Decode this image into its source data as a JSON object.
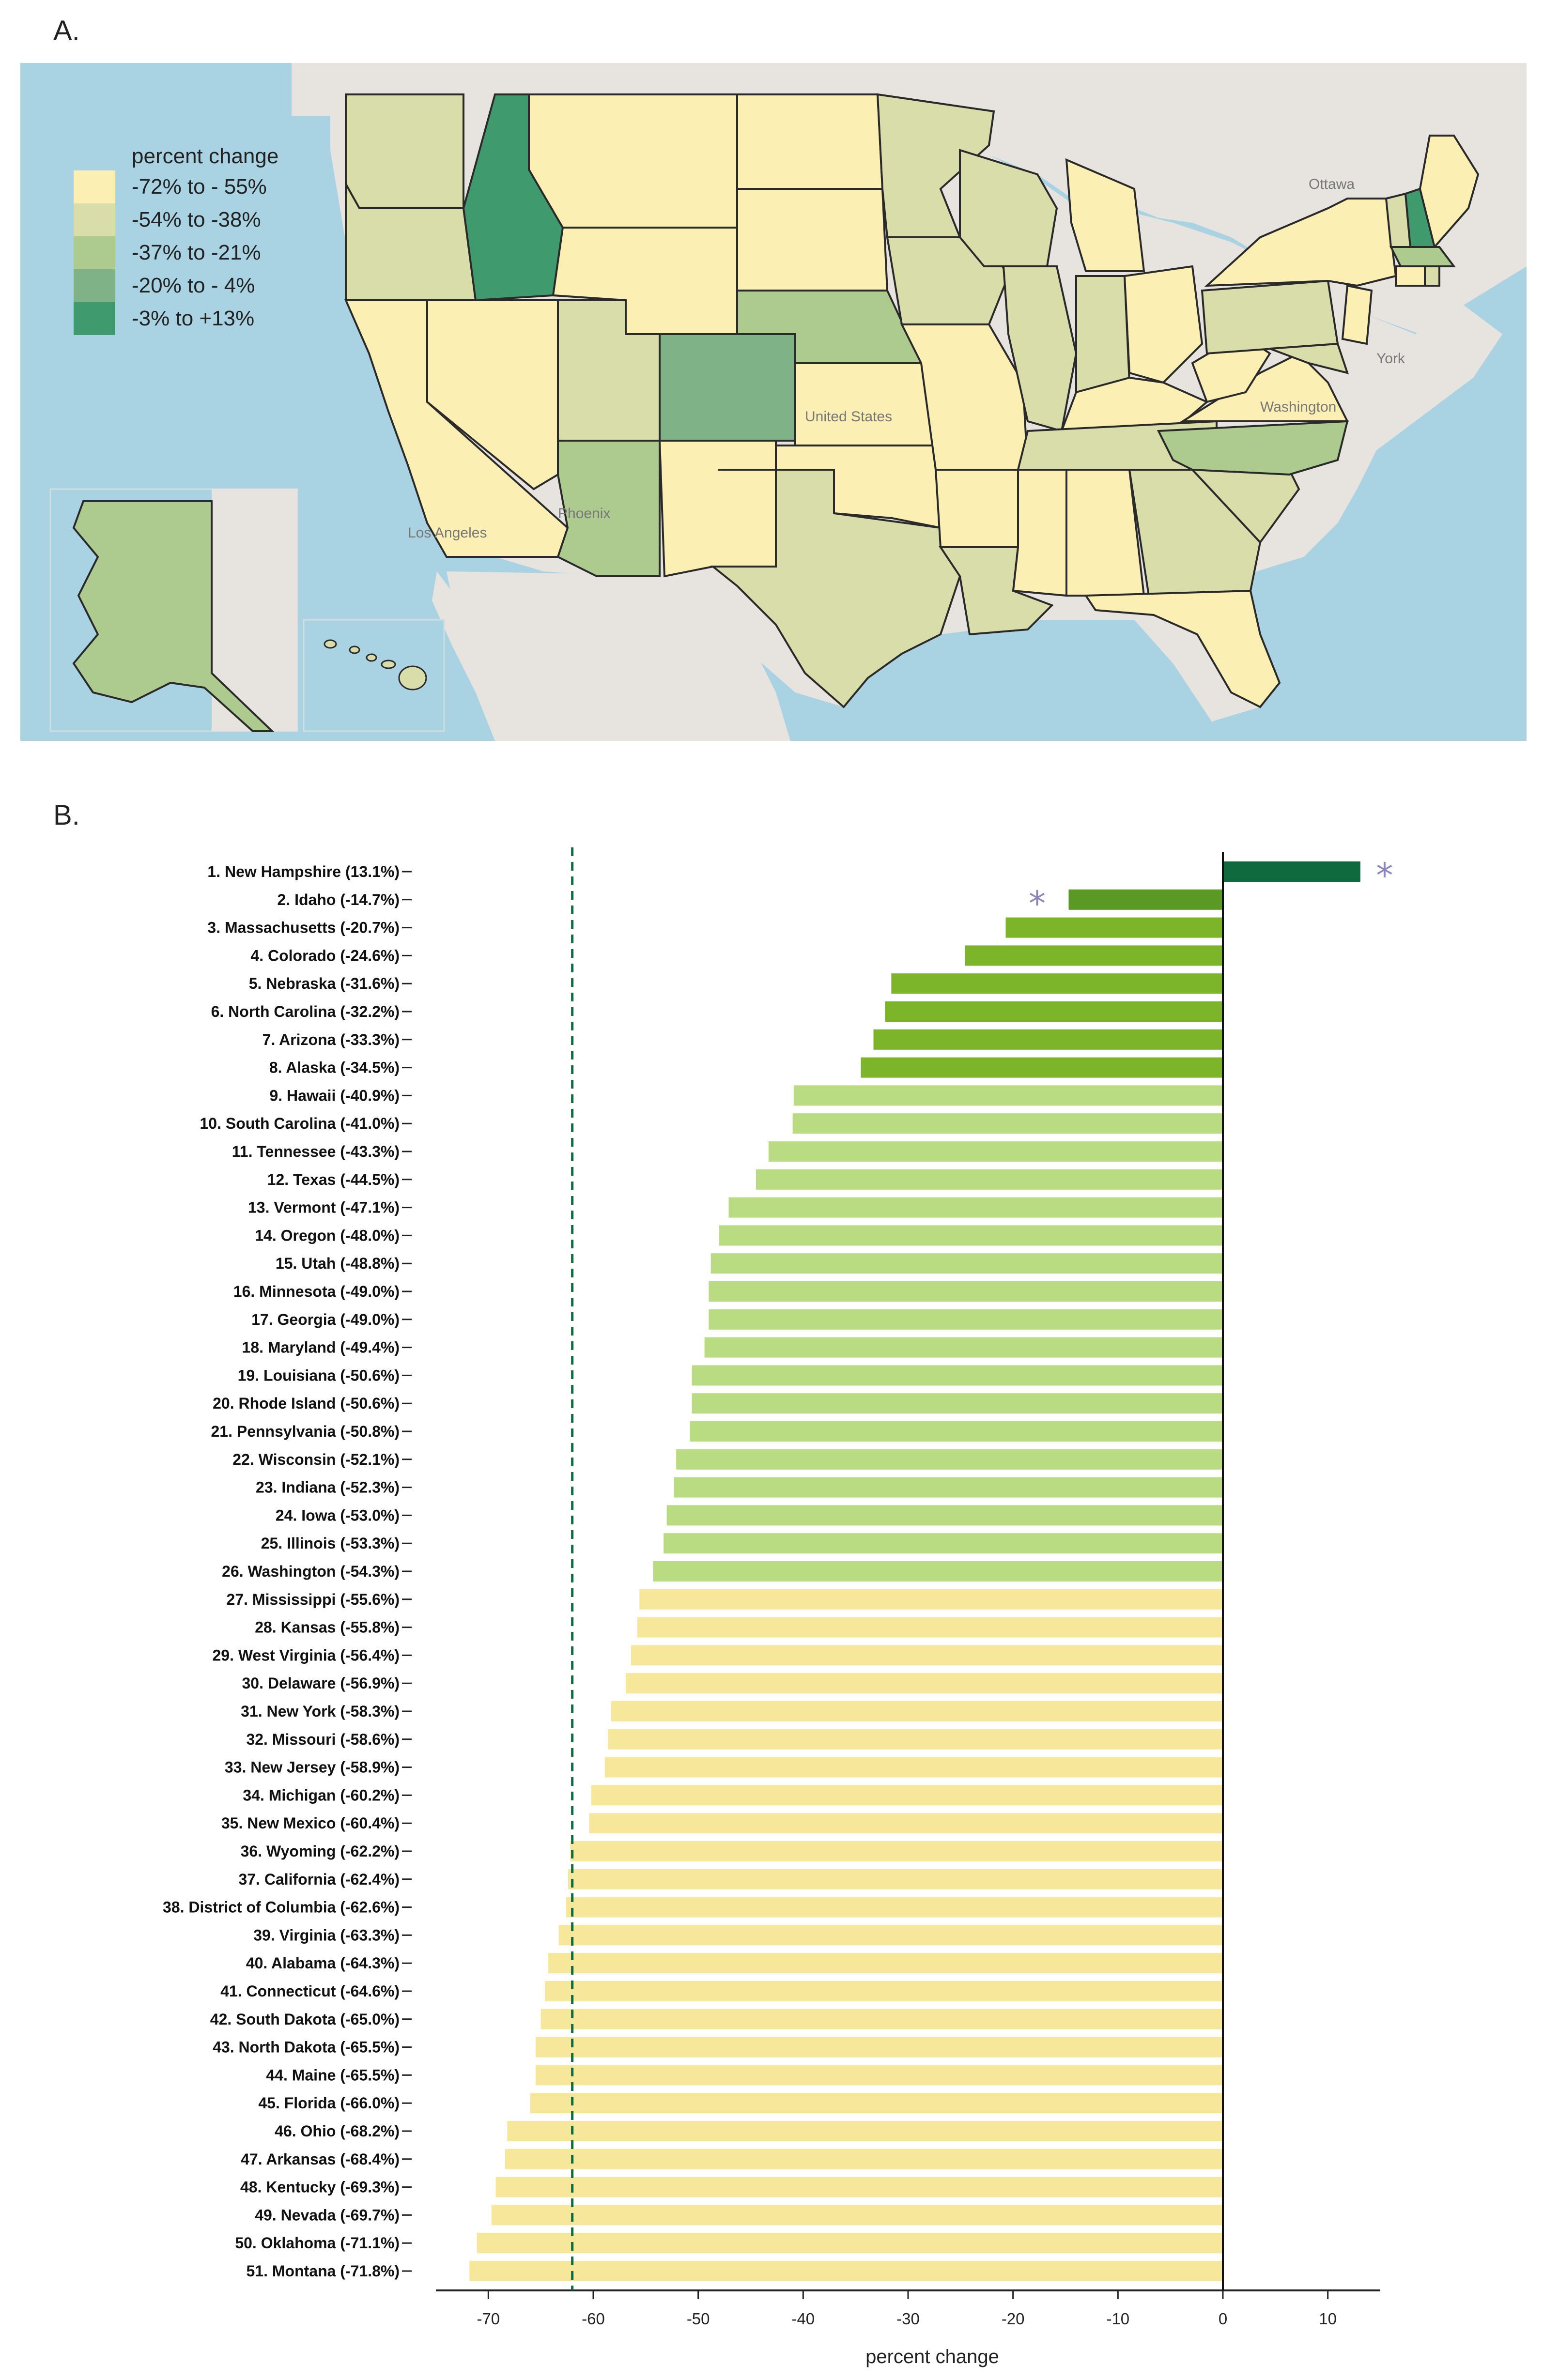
{
  "panels": {
    "a_label": "A.",
    "b_label": "B."
  },
  "colors": {
    "c1": "#fbefb3",
    "c2": "#d8ddaa",
    "c3": "#aecb8f",
    "c4": "#7fb387",
    "c5": "#3f9a6e",
    "bar_yellow": "#f7e79b",
    "bar_lightgreen": "#b9dc82",
    "bar_green": "#7db52a",
    "bar_darkgreen": "#5a9a24",
    "bar_top": "#0f6b3d",
    "star": "#8a86bd",
    "dashed": "#0f6b3d",
    "water": "#a9d3e2",
    "land": "#e7e4df"
  },
  "map": {
    "legend": {
      "title": "percent change",
      "items": [
        {
          "label": "-72% to - 55%",
          "color": "#fbefb3"
        },
        {
          "label": "-54% to -38%",
          "color": "#d8ddaa"
        },
        {
          "label": "-37% to -21%",
          "color": "#aecb8f"
        },
        {
          "label": "-20% to - 4%",
          "color": "#7fb387"
        },
        {
          "label": "-3% to +13%",
          "color": "#3f9a6e"
        }
      ]
    },
    "city_labels": {
      "ottawa": "Ottawa",
      "new_york": "York",
      "washington": "Washington",
      "united_states": "United States",
      "phoenix": "Phoenix",
      "los_angeles": "Los Angeles"
    }
  },
  "chart_data": {
    "type": "bar",
    "orientation": "horizontal",
    "title": "",
    "xlabel": "percent change",
    "ylabel": "",
    "xlim": [
      -75,
      15
    ],
    "xticks": [
      -70,
      -60,
      -50,
      -40,
      -30,
      -20,
      -10,
      0,
      10
    ],
    "reference_line": {
      "value": -62,
      "style": "dashed"
    },
    "significance_markers": [
      "1. New Hampshire (13.1%)",
      "2. Idaho (-14.7%)"
    ],
    "marker_symbol": "*",
    "categories": [
      "1. New Hampshire (13.1%)",
      "2. Idaho (-14.7%)",
      "3. Massachusetts (-20.7%)",
      "4. Colorado (-24.6%)",
      "5. Nebraska (-31.6%)",
      "6. North Carolina (-32.2%)",
      "7. Arizona (-33.3%)",
      "8. Alaska (-34.5%)",
      "9. Hawaii (-40.9%)",
      "10. South Carolina (-41.0%)",
      "11. Tennessee (-43.3%)",
      "12. Texas (-44.5%)",
      "13. Vermont (-47.1%)",
      "14. Oregon (-48.0%)",
      "15. Utah (-48.8%)",
      "16. Minnesota (-49.0%)",
      "17. Georgia (-49.0%)",
      "18. Maryland (-49.4%)",
      "19. Louisiana (-50.6%)",
      "20. Rhode Island (-50.6%)",
      "21. Pennsylvania (-50.8%)",
      "22. Wisconsin (-52.1%)",
      "23. Indiana (-52.3%)",
      "24. Iowa (-53.0%)",
      "25. Illinois (-53.3%)",
      "26. Washington (-54.3%)",
      "27. Mississippi (-55.6%)",
      "28. Kansas (-55.8%)",
      "29. West Virginia (-56.4%)",
      "30. Delaware (-56.9%)",
      "31. New York (-58.3%)",
      "32. Missouri (-58.6%)",
      "33. New Jersey (-58.9%)",
      "34. Michigan (-60.2%)",
      "35. New Mexico (-60.4%)",
      "36. Wyoming (-62.2%)",
      "37. California (-62.4%)",
      "38. District of Columbia (-62.6%)",
      "39. Virginia (-63.3%)",
      "40. Alabama (-64.3%)",
      "41. Connecticut (-64.6%)",
      "42. South Dakota (-65.0%)",
      "43. North Dakota (-65.5%)",
      "44. Maine (-65.5%)",
      "45. Florida (-66.0%)",
      "46. Ohio (-68.2%)",
      "47. Arkansas (-68.4%)",
      "48. Kentucky (-69.3%)",
      "49. Nevada (-69.7%)",
      "50. Oklahoma (-71.1%)",
      "51. Montana (-71.8%)"
    ],
    "values": [
      13.1,
      -14.7,
      -20.7,
      -24.6,
      -31.6,
      -32.2,
      -33.3,
      -34.5,
      -40.9,
      -41.0,
      -43.3,
      -44.5,
      -47.1,
      -48.0,
      -48.8,
      -49.0,
      -49.0,
      -49.4,
      -50.6,
      -50.6,
      -50.8,
      -52.1,
      -52.3,
      -53.0,
      -53.3,
      -54.3,
      -55.6,
      -55.8,
      -56.4,
      -56.9,
      -58.3,
      -58.6,
      -58.9,
      -60.2,
      -60.4,
      -62.2,
      -62.4,
      -62.6,
      -63.3,
      -64.3,
      -64.6,
      -65.0,
      -65.5,
      -65.5,
      -66.0,
      -68.2,
      -68.4,
      -69.3,
      -69.7,
      -71.1,
      -71.8
    ]
  }
}
